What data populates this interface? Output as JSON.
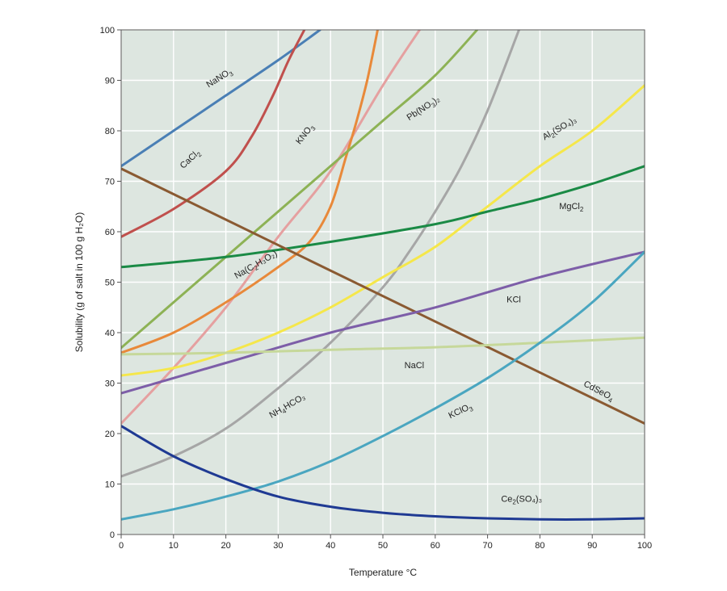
{
  "chart_data": {
    "type": "line",
    "xlabel": "Temperature °C",
    "ylabel": "Solubility (g of salt in 100 g H₂O)",
    "xlim": [
      0,
      100
    ],
    "ylim": [
      0,
      100
    ],
    "x_ticks": [
      0,
      10,
      20,
      30,
      40,
      50,
      60,
      70,
      80,
      90,
      100
    ],
    "y_ticks": [
      0,
      10,
      20,
      30,
      40,
      50,
      60,
      70,
      80,
      90,
      100
    ],
    "grid": true,
    "background": "#dde6e0",
    "series": [
      {
        "name": "NaNO3",
        "color": "#4a7fb5",
        "x": [
          0,
          10,
          20,
          30,
          38
        ],
        "y": [
          73,
          80,
          87,
          94,
          100
        ]
      },
      {
        "name": "CaCl2",
        "color": "#c0504d",
        "x": [
          0,
          10,
          20,
          25,
          29,
          32,
          35
        ],
        "y": [
          59,
          64.5,
          72,
          79,
          87,
          94,
          100
        ]
      },
      {
        "name": "KNO3",
        "color": "#e5a0a0",
        "x": [
          0,
          10,
          20,
          30,
          40,
          50,
          57
        ],
        "y": [
          22,
          33,
          45,
          59,
          72,
          89,
          100
        ]
      },
      {
        "name": "Na(C2H3O2)",
        "color": "#e8893a",
        "x": [
          0,
          10,
          20,
          30,
          36,
          40,
          43,
          45,
          47,
          49
        ],
        "y": [
          36,
          40,
          46,
          53,
          58,
          65,
          75,
          82,
          90,
          100
        ]
      },
      {
        "name": "Pb(NO3)2",
        "color": "#8db255",
        "x": [
          0,
          10,
          20,
          30,
          40,
          50,
          60,
          68
        ],
        "y": [
          37,
          46,
          55,
          64,
          73,
          82,
          91,
          100
        ]
      },
      {
        "name": "NH4HCO3",
        "color": "#a6a6a6",
        "x": [
          0,
          10,
          20,
          30,
          40,
          50,
          55,
          60,
          65,
          70,
          76
        ],
        "y": [
          11.5,
          15.5,
          21,
          29,
          38,
          49,
          56,
          64,
          73,
          84,
          100
        ]
      },
      {
        "name": "Al2(SO4)3",
        "color": "#f5e74a",
        "x": [
          0,
          10,
          20,
          30,
          40,
          50,
          60,
          70,
          80,
          90,
          100
        ],
        "y": [
          31.5,
          33,
          36,
          40,
          45,
          51,
          57,
          65,
          73,
          80,
          89
        ]
      },
      {
        "name": "MgCl2",
        "color": "#1a8a45",
        "x": [
          0,
          20,
          40,
          60,
          70,
          80,
          90,
          100
        ],
        "y": [
          53,
          55,
          58,
          61.5,
          64,
          66.5,
          69.5,
          73
        ]
      },
      {
        "name": "CdSeO4",
        "color": "#8a5a32",
        "x": [
          0,
          100
        ],
        "y": [
          72.5,
          22
        ]
      },
      {
        "name": "KCl",
        "color": "#7d5ea8",
        "x": [
          0,
          20,
          40,
          60,
          80,
          100
        ],
        "y": [
          28,
          34,
          40,
          45,
          51,
          56
        ]
      },
      {
        "name": "NaCl",
        "color": "#c6d89a",
        "x": [
          0,
          20,
          40,
          60,
          80,
          100
        ],
        "y": [
          35.7,
          36,
          36.6,
          37.1,
          38,
          39
        ]
      },
      {
        "name": "KClO3",
        "color": "#4aa6c0",
        "x": [
          0,
          10,
          20,
          30,
          40,
          50,
          60,
          70,
          80,
          90,
          100
        ],
        "y": [
          3,
          5,
          7.5,
          10.5,
          14.5,
          19.5,
          25,
          31,
          38,
          46,
          56
        ]
      },
      {
        "name": "Ce2(SO4)3",
        "color": "#1f3a93",
        "x": [
          0,
          10,
          20,
          30,
          40,
          50,
          60,
          70,
          80,
          90,
          100
        ],
        "y": [
          21.5,
          15.5,
          11,
          7.5,
          5.5,
          4.3,
          3.6,
          3.2,
          3,
          3,
          3.2
        ]
      }
    ],
    "curve_labels": [
      {
        "text": "NaNO",
        "sub": "3",
        "at": [
          19,
          90
        ],
        "angle": -32
      },
      {
        "text": "CaCl",
        "sub": "2",
        "at": [
          13.5,
          74
        ],
        "angle": -43
      },
      {
        "text": "KNO",
        "sub": "3",
        "at": [
          35.5,
          79
        ],
        "angle": -52
      },
      {
        "text": "Pb(NO",
        "sub": "3",
        "tail": ")₂",
        "at": [
          58,
          84
        ],
        "angle": -33
      },
      {
        "text": "Al",
        "sub": "2",
        "tail": "(SO₄)₃",
        "at": [
          84,
          80
        ],
        "angle": -30
      },
      {
        "text": "MgCl",
        "sub": "2",
        "at": [
          86,
          64.5
        ],
        "angle": 0
      },
      {
        "text": "Na(C",
        "sub": "2",
        "tail": "H₃O₂)",
        "at": [
          26,
          53
        ],
        "angle": -30
      },
      {
        "text": "KCl",
        "sub": "",
        "at": [
          75,
          46
        ],
        "angle": 0
      },
      {
        "text": "NaCl",
        "sub": "",
        "at": [
          56,
          33
        ],
        "angle": 0
      },
      {
        "text": "NH",
        "sub": "4",
        "tail": "HCO₃",
        "at": [
          32,
          25
        ],
        "angle": -30
      },
      {
        "text": "KClO",
        "sub": "3",
        "at": [
          65,
          24
        ],
        "angle": -25
      },
      {
        "text": "CdSeO",
        "sub": "4",
        "at": [
          91,
          28
        ],
        "angle": 28
      },
      {
        "text": "Ce",
        "sub": "2",
        "tail": "(SO₄)₃",
        "at": [
          76.5,
          6.5
        ],
        "angle": 0
      }
    ]
  }
}
